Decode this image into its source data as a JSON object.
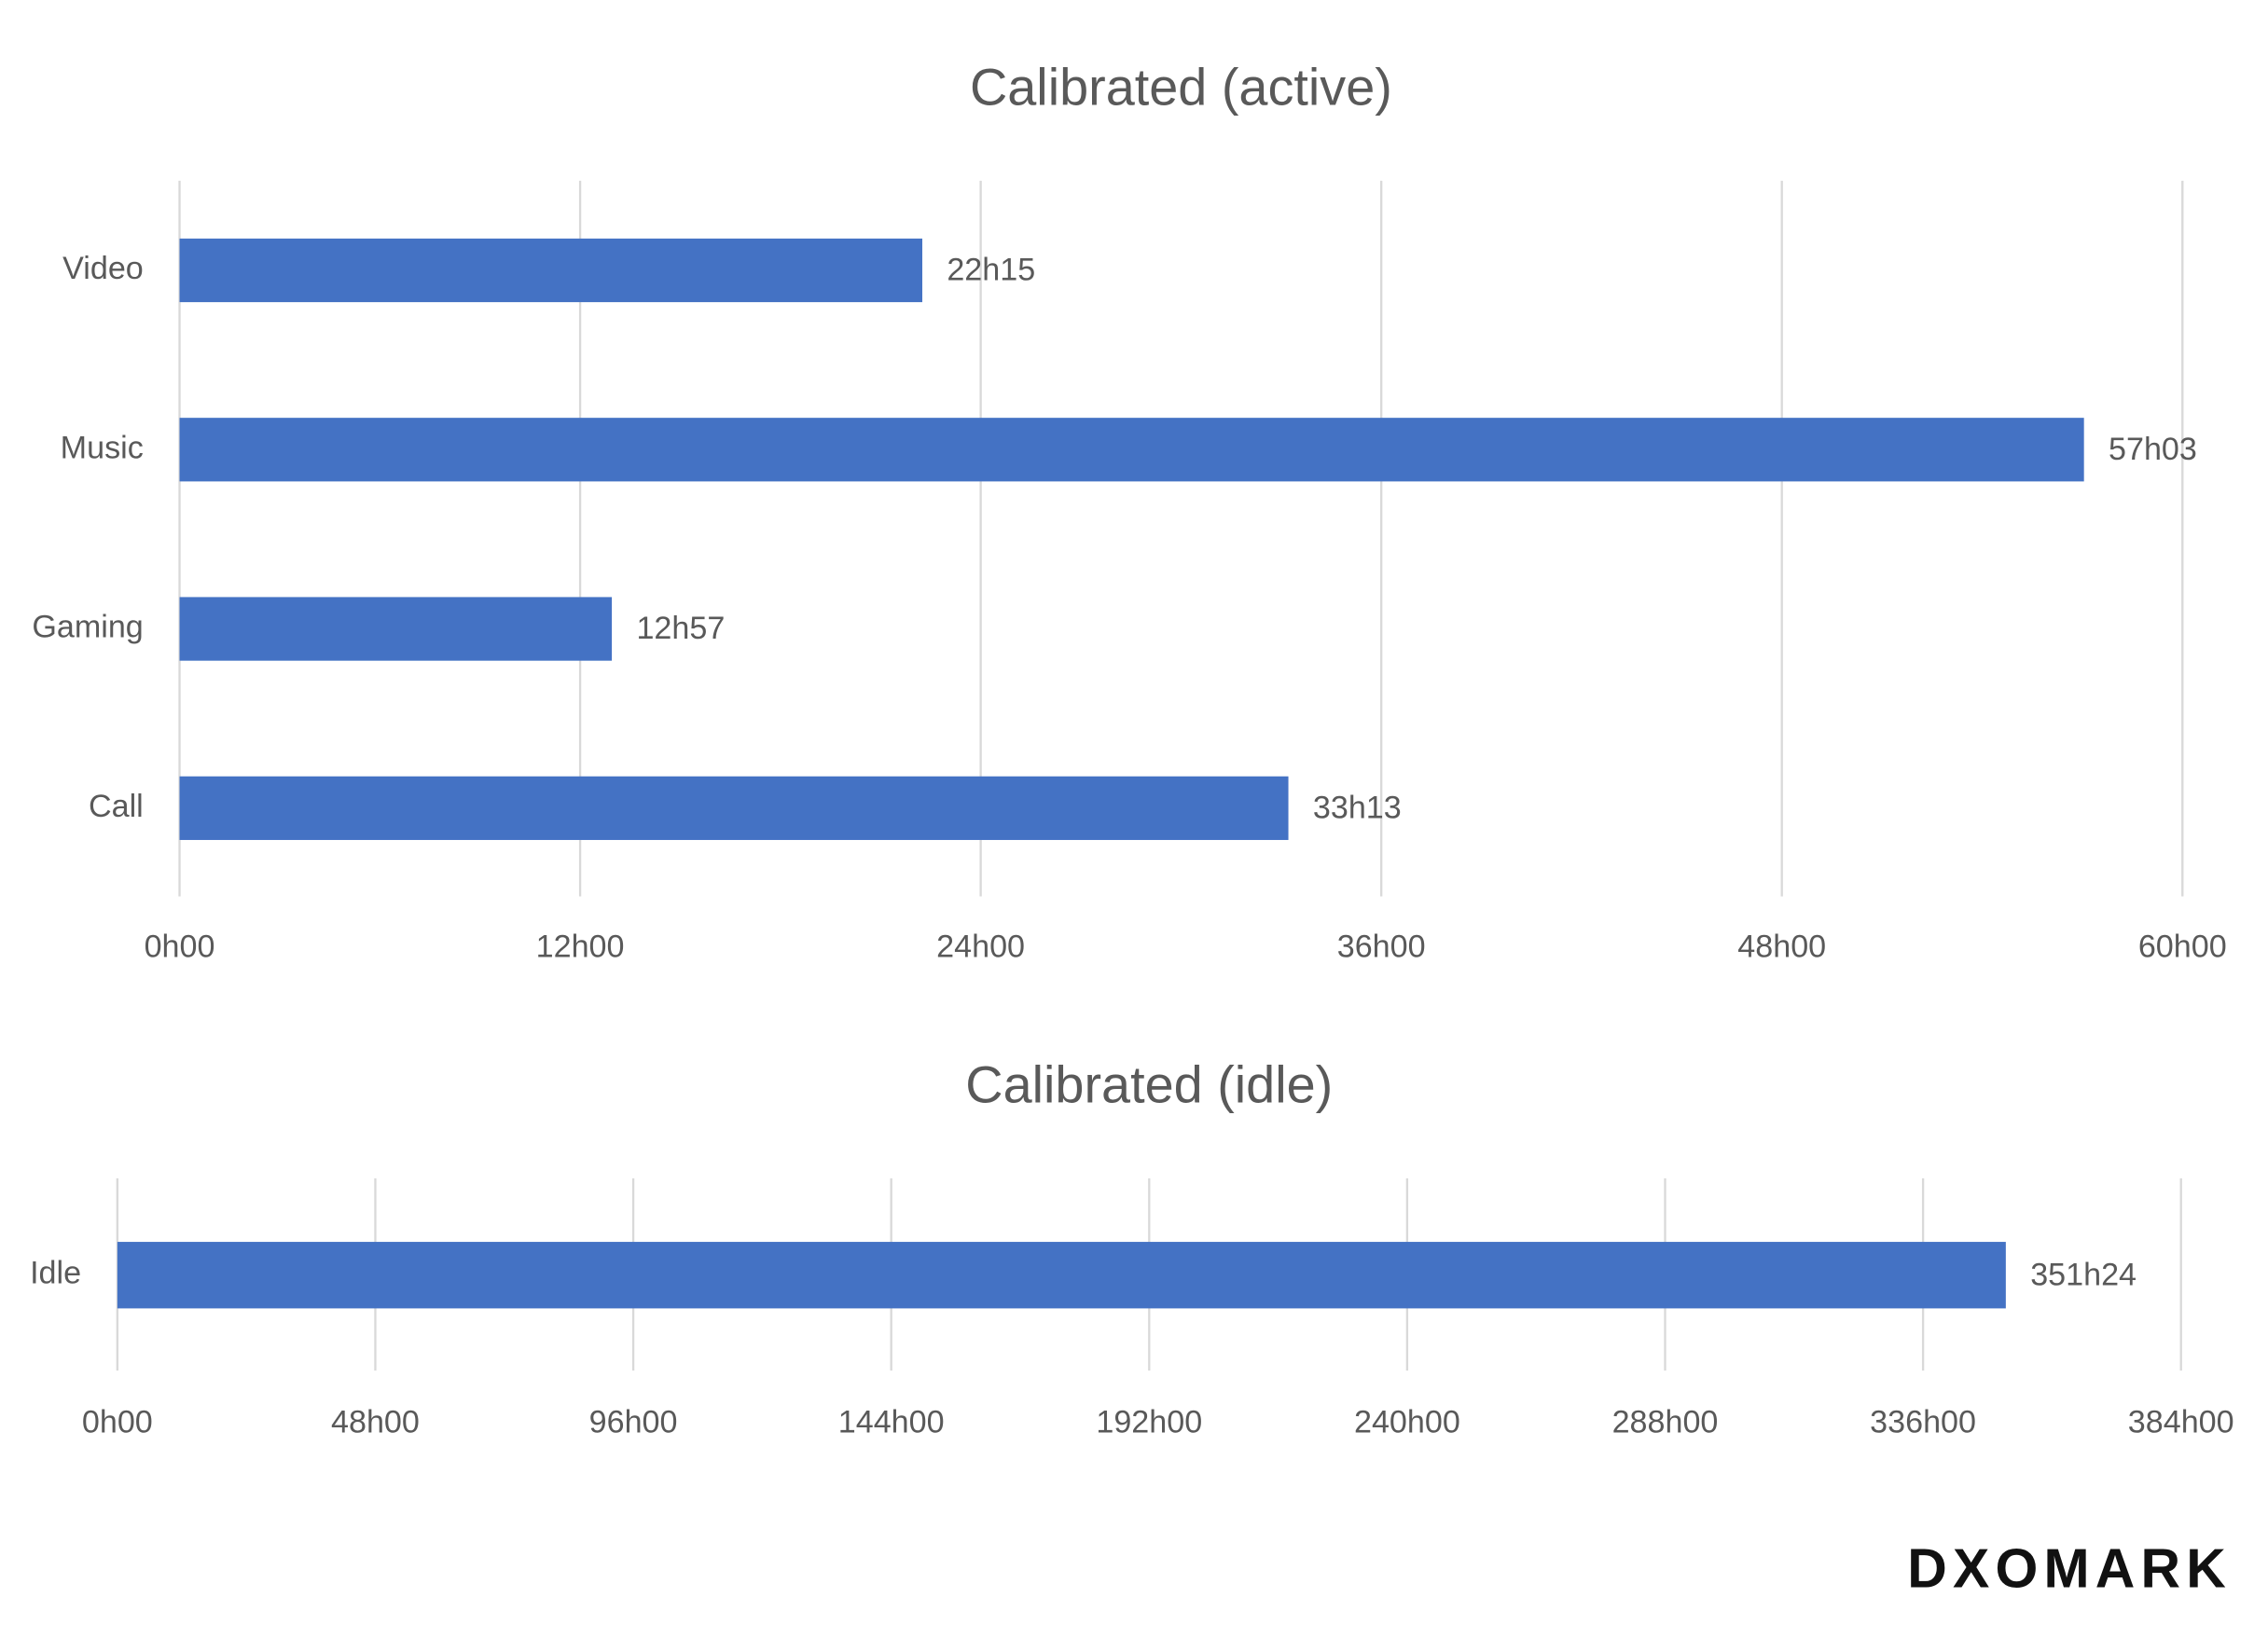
{
  "chart_data": [
    {
      "type": "bar",
      "orientation": "horizontal",
      "title": "Calibrated (active)",
      "categories": [
        "Video",
        "Music",
        "Gaming",
        "Call"
      ],
      "values": [
        22.25,
        57.05,
        12.95,
        33.2167
      ],
      "value_labels": [
        "22h15",
        "57h03",
        "12h57",
        "33h13"
      ],
      "color": "#4472c4",
      "grid": true,
      "xlim": [
        0,
        60
      ],
      "xticks": [
        {
          "value": 0,
          "label": "0h00"
        },
        {
          "value": 12,
          "label": "12h00"
        },
        {
          "value": 24,
          "label": "24h00"
        },
        {
          "value": 36,
          "label": "36h00"
        },
        {
          "value": 48,
          "label": "48h00"
        },
        {
          "value": 60,
          "label": "60h00"
        }
      ]
    },
    {
      "type": "bar",
      "orientation": "horizontal",
      "title": "Calibrated (idle)",
      "categories": [
        "Idle"
      ],
      "values": [
        351.4
      ],
      "value_labels": [
        "351h24"
      ],
      "color": "#4472c4",
      "grid": true,
      "xlim": [
        0,
        384
      ],
      "xticks": [
        {
          "value": 0,
          "label": "0h00"
        },
        {
          "value": 48,
          "label": "48h00"
        },
        {
          "value": 96,
          "label": "96h00"
        },
        {
          "value": 144,
          "label": "144h00"
        },
        {
          "value": 192,
          "label": "192h00"
        },
        {
          "value": 240,
          "label": "240h00"
        },
        {
          "value": 288,
          "label": "288h00"
        },
        {
          "value": 336,
          "label": "336h00"
        },
        {
          "value": 384,
          "label": "384h00"
        }
      ]
    }
  ],
  "logo": "DXOMARK"
}
